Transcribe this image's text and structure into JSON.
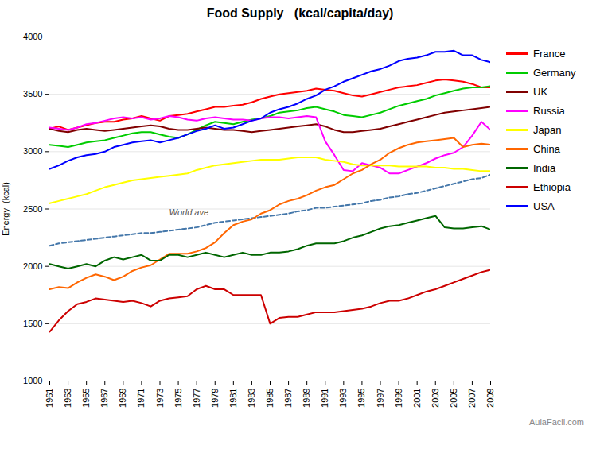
{
  "chart_data": {
    "type": "line",
    "title": "Food Supply   (kcal/capita/day)",
    "y_label": "Energy  (kcal)",
    "x": [
      1961,
      1962,
      1963,
      1964,
      1965,
      1966,
      1967,
      1968,
      1969,
      1970,
      1971,
      1972,
      1973,
      1974,
      1975,
      1976,
      1977,
      1978,
      1979,
      1980,
      1981,
      1982,
      1983,
      1984,
      1985,
      1986,
      1987,
      1988,
      1989,
      1990,
      1991,
      1992,
      1993,
      1994,
      1995,
      1996,
      1997,
      1998,
      1999,
      2000,
      2001,
      2002,
      2003,
      2004,
      2005,
      2006,
      2007,
      2008,
      2009
    ],
    "series": [
      {
        "name": "France",
        "color": "#ff0000",
        "values": [
          3200,
          3220,
          3190,
          3210,
          3230,
          3250,
          3260,
          3260,
          3280,
          3290,
          3310,
          3290,
          3270,
          3310,
          3320,
          3330,
          3350,
          3370,
          3390,
          3390,
          3400,
          3410,
          3430,
          3460,
          3480,
          3500,
          3510,
          3520,
          3530,
          3550,
          3540,
          3530,
          3510,
          3490,
          3480,
          3500,
          3520,
          3540,
          3560,
          3570,
          3580,
          3600,
          3620,
          3630,
          3620,
          3610,
          3590,
          3560,
          3560
        ]
      },
      {
        "name": "Germany",
        "color": "#00cc00",
        "values": [
          3060,
          3050,
          3040,
          3060,
          3080,
          3090,
          3100,
          3120,
          3140,
          3160,
          3170,
          3170,
          3150,
          3130,
          3120,
          3150,
          3190,
          3230,
          3260,
          3250,
          3240,
          3260,
          3280,
          3290,
          3310,
          3340,
          3350,
          3360,
          3380,
          3390,
          3370,
          3350,
          3320,
          3310,
          3300,
          3320,
          3340,
          3370,
          3400,
          3420,
          3440,
          3460,
          3490,
          3510,
          3530,
          3550,
          3560,
          3560,
          3570
        ]
      },
      {
        "name": "UK",
        "color": "#800000",
        "values": [
          3200,
          3180,
          3170,
          3190,
          3200,
          3190,
          3180,
          3190,
          3200,
          3210,
          3220,
          3230,
          3220,
          3200,
          3190,
          3190,
          3200,
          3210,
          3200,
          3190,
          3190,
          3180,
          3170,
          3180,
          3190,
          3200,
          3210,
          3220,
          3230,
          3240,
          3220,
          3190,
          3170,
          3170,
          3180,
          3190,
          3200,
          3220,
          3240,
          3260,
          3280,
          3300,
          3320,
          3340,
          3350,
          3360,
          3370,
          3380,
          3390
        ]
      },
      {
        "name": "Russia",
        "color": "#ff00ff",
        "values": [
          3210,
          3200,
          3190,
          3210,
          3240,
          3250,
          3270,
          3290,
          3300,
          3290,
          3300,
          3280,
          3290,
          3310,
          3300,
          3280,
          3270,
          3290,
          3300,
          3290,
          3280,
          3280,
          3270,
          3290,
          3300,
          3300,
          3290,
          3300,
          3310,
          3300,
          3090,
          2970,
          2840,
          2830,
          2900,
          2880,
          2860,
          2810,
          2810,
          2840,
          2870,
          2900,
          2940,
          2970,
          2990,
          3040,
          3140,
          3260,
          3190
        ]
      },
      {
        "name": "Japan",
        "color": "#ffff00",
        "values": [
          2550,
          2570,
          2590,
          2610,
          2630,
          2660,
          2690,
          2710,
          2730,
          2750,
          2760,
          2770,
          2780,
          2790,
          2800,
          2810,
          2840,
          2860,
          2880,
          2890,
          2900,
          2910,
          2920,
          2930,
          2930,
          2930,
          2940,
          2950,
          2950,
          2950,
          2930,
          2920,
          2910,
          2890,
          2880,
          2880,
          2880,
          2880,
          2870,
          2870,
          2870,
          2870,
          2860,
          2860,
          2850,
          2850,
          2840,
          2830,
          2830
        ]
      },
      {
        "color": "#4477aa",
        "line_style": "dashed",
        "values": [
          2180,
          2200,
          2210,
          2220,
          2230,
          2240,
          2250,
          2260,
          2270,
          2280,
          2290,
          2290,
          2300,
          2310,
          2320,
          2330,
          2340,
          2360,
          2380,
          2390,
          2400,
          2410,
          2420,
          2430,
          2440,
          2450,
          2460,
          2480,
          2490,
          2510,
          2510,
          2520,
          2530,
          2540,
          2550,
          2570,
          2580,
          2600,
          2610,
          2630,
          2640,
          2660,
          2680,
          2700,
          2720,
          2740,
          2760,
          2770,
          2800
        ]
      },
      {
        "name": "China",
        "color": "#ff6600",
        "values": [
          1800,
          1820,
          1810,
          1860,
          1900,
          1930,
          1910,
          1880,
          1910,
          1960,
          1990,
          2010,
          2060,
          2110,
          2110,
          2110,
          2130,
          2160,
          2210,
          2290,
          2360,
          2390,
          2410,
          2460,
          2490,
          2540,
          2570,
          2590,
          2620,
          2660,
          2690,
          2710,
          2760,
          2810,
          2840,
          2890,
          2930,
          2990,
          3030,
          3060,
          3080,
          3090,
          3100,
          3110,
          3120,
          3040,
          3060,
          3070,
          3060
        ]
      },
      {
        "name": "India",
        "color": "#006600",
        "values": [
          2020,
          2000,
          1980,
          2000,
          2020,
          2000,
          2050,
          2080,
          2060,
          2080,
          2100,
          2050,
          2050,
          2100,
          2100,
          2080,
          2100,
          2120,
          2100,
          2080,
          2100,
          2120,
          2100,
          2100,
          2120,
          2120,
          2130,
          2150,
          2180,
          2200,
          2200,
          2200,
          2220,
          2250,
          2270,
          2300,
          2330,
          2350,
          2360,
          2380,
          2400,
          2420,
          2440,
          2340,
          2330,
          2330,
          2340,
          2350,
          2320
        ]
      },
      {
        "name": "Ethiopia",
        "color": "#cc0000",
        "values": [
          1430,
          1530,
          1610,
          1670,
          1690,
          1720,
          1710,
          1700,
          1690,
          1700,
          1680,
          1650,
          1700,
          1720,
          1730,
          1740,
          1800,
          1830,
          1800,
          1800,
          1750,
          1750,
          1750,
          1750,
          1500,
          1550,
          1560,
          1560,
          1580,
          1600,
          1600,
          1600,
          1610,
          1620,
          1630,
          1650,
          1680,
          1700,
          1700,
          1720,
          1750,
          1780,
          1800,
          1830,
          1860,
          1890,
          1920,
          1950,
          1970
        ]
      },
      {
        "name": "USA",
        "color": "#0000ff",
        "values": [
          2850,
          2880,
          2920,
          2950,
          2970,
          2980,
          3000,
          3040,
          3060,
          3080,
          3090,
          3100,
          3080,
          3100,
          3120,
          3150,
          3180,
          3200,
          3230,
          3200,
          3210,
          3240,
          3270,
          3290,
          3340,
          3370,
          3390,
          3420,
          3460,
          3490,
          3540,
          3570,
          3610,
          3640,
          3670,
          3700,
          3720,
          3750,
          3790,
          3810,
          3820,
          3840,
          3870,
          3870,
          3880,
          3840,
          3840,
          3800,
          3780
        ]
      }
    ],
    "annotations": [
      {
        "x": 1974,
        "y": 2470,
        "text": "World ave"
      },
      {
        "text": "AulaFacil.com"
      }
    ],
    "xlim": [
      1961,
      2009
    ],
    "xticks": [
      1961,
      1963,
      1965,
      1967,
      1969,
      1971,
      1973,
      1975,
      1977,
      1979,
      1981,
      1983,
      1985,
      1987,
      1989,
      1991,
      1993,
      1995,
      1997,
      1999,
      2001,
      2003,
      2005,
      2007,
      2009
    ],
    "ylim": [
      1000,
      4000
    ],
    "yticks": [
      1000,
      1500,
      2000,
      2500,
      3000,
      3500,
      4000
    ],
    "grid": true,
    "legend": "right"
  }
}
